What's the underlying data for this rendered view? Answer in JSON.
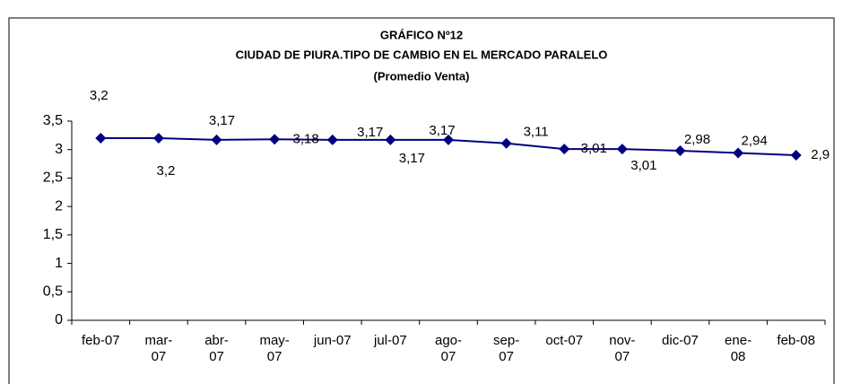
{
  "chart_data": {
    "type": "line",
    "title": "GRÁFICO Nº12",
    "subtitle": "CIUDAD DE PIURA.TIPO DE CAMBIO EN EL MERCADO PARALELO",
    "note": "(Promedio Venta)",
    "categories": [
      "feb-07",
      "mar-07",
      "abr-07",
      "may-07",
      "jun-07",
      "jul-07",
      "ago-07",
      "sep-07",
      "oct-07",
      "nov-07",
      "dic-07",
      "ene-08",
      "feb-08"
    ],
    "series": [
      {
        "name": "Promedio Venta",
        "color": "#000080",
        "values": [
          3.2,
          3.2,
          3.17,
          3.18,
          3.17,
          3.17,
          3.17,
          3.11,
          3.01,
          3.01,
          2.98,
          2.94,
          2.9
        ],
        "value_labels": [
          "3,2",
          "3,2",
          "3,17",
          "3,18",
          "3,17",
          "3,17",
          "3,17",
          "3,11",
          "3,01",
          "3,01",
          "2,98",
          "2,94",
          "2,9"
        ]
      }
    ],
    "ylim": [
      0,
      3.5
    ],
    "yticks": [
      0,
      {
        "value": 0.5,
        "label": "0,5"
      },
      1,
      {
        "value": 1.5,
        "label": "1,5"
      },
      2,
      {
        "value": 2.5,
        "label": "2,5"
      },
      3,
      {
        "value": 3.5,
        "label": "3,5"
      }
    ],
    "grid": false
  }
}
